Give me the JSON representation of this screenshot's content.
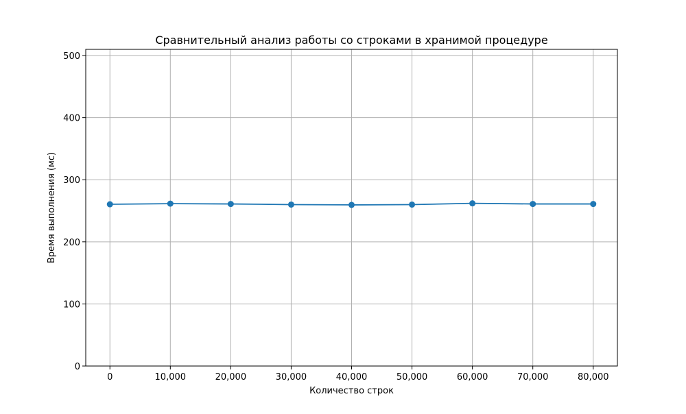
{
  "chart_data": {
    "type": "line",
    "title": "Сравнительный анализ работы со строками в хранимой процедуре",
    "xlabel": "Количество строк",
    "ylabel": "Время выполнения (мс)",
    "x": [
      0,
      10000,
      20000,
      30000,
      40000,
      50000,
      60000,
      70000,
      80000
    ],
    "series": [
      {
        "values": [
          260.5,
          261.5,
          261.0,
          260.0,
          259.5,
          260.0,
          262.0,
          261.0,
          261.0
        ],
        "color": "#1f77b4",
        "marker": "circle"
      }
    ],
    "xticks": [
      0,
      10000,
      20000,
      30000,
      40000,
      50000,
      60000,
      70000,
      80000
    ],
    "xtick_labels": [
      "0",
      "10,000",
      "20,000",
      "30,000",
      "40,000",
      "50,000",
      "60,000",
      "70,000",
      "80,000"
    ],
    "yticks": [
      0,
      100,
      200,
      300,
      400,
      500
    ],
    "ytick_labels": [
      "0",
      "100",
      "200",
      "300",
      "400",
      "500"
    ],
    "xlim": [
      -4000,
      84000
    ],
    "ylim": [
      0,
      510
    ],
    "grid": true,
    "grid_color": "#b0b0b0"
  }
}
